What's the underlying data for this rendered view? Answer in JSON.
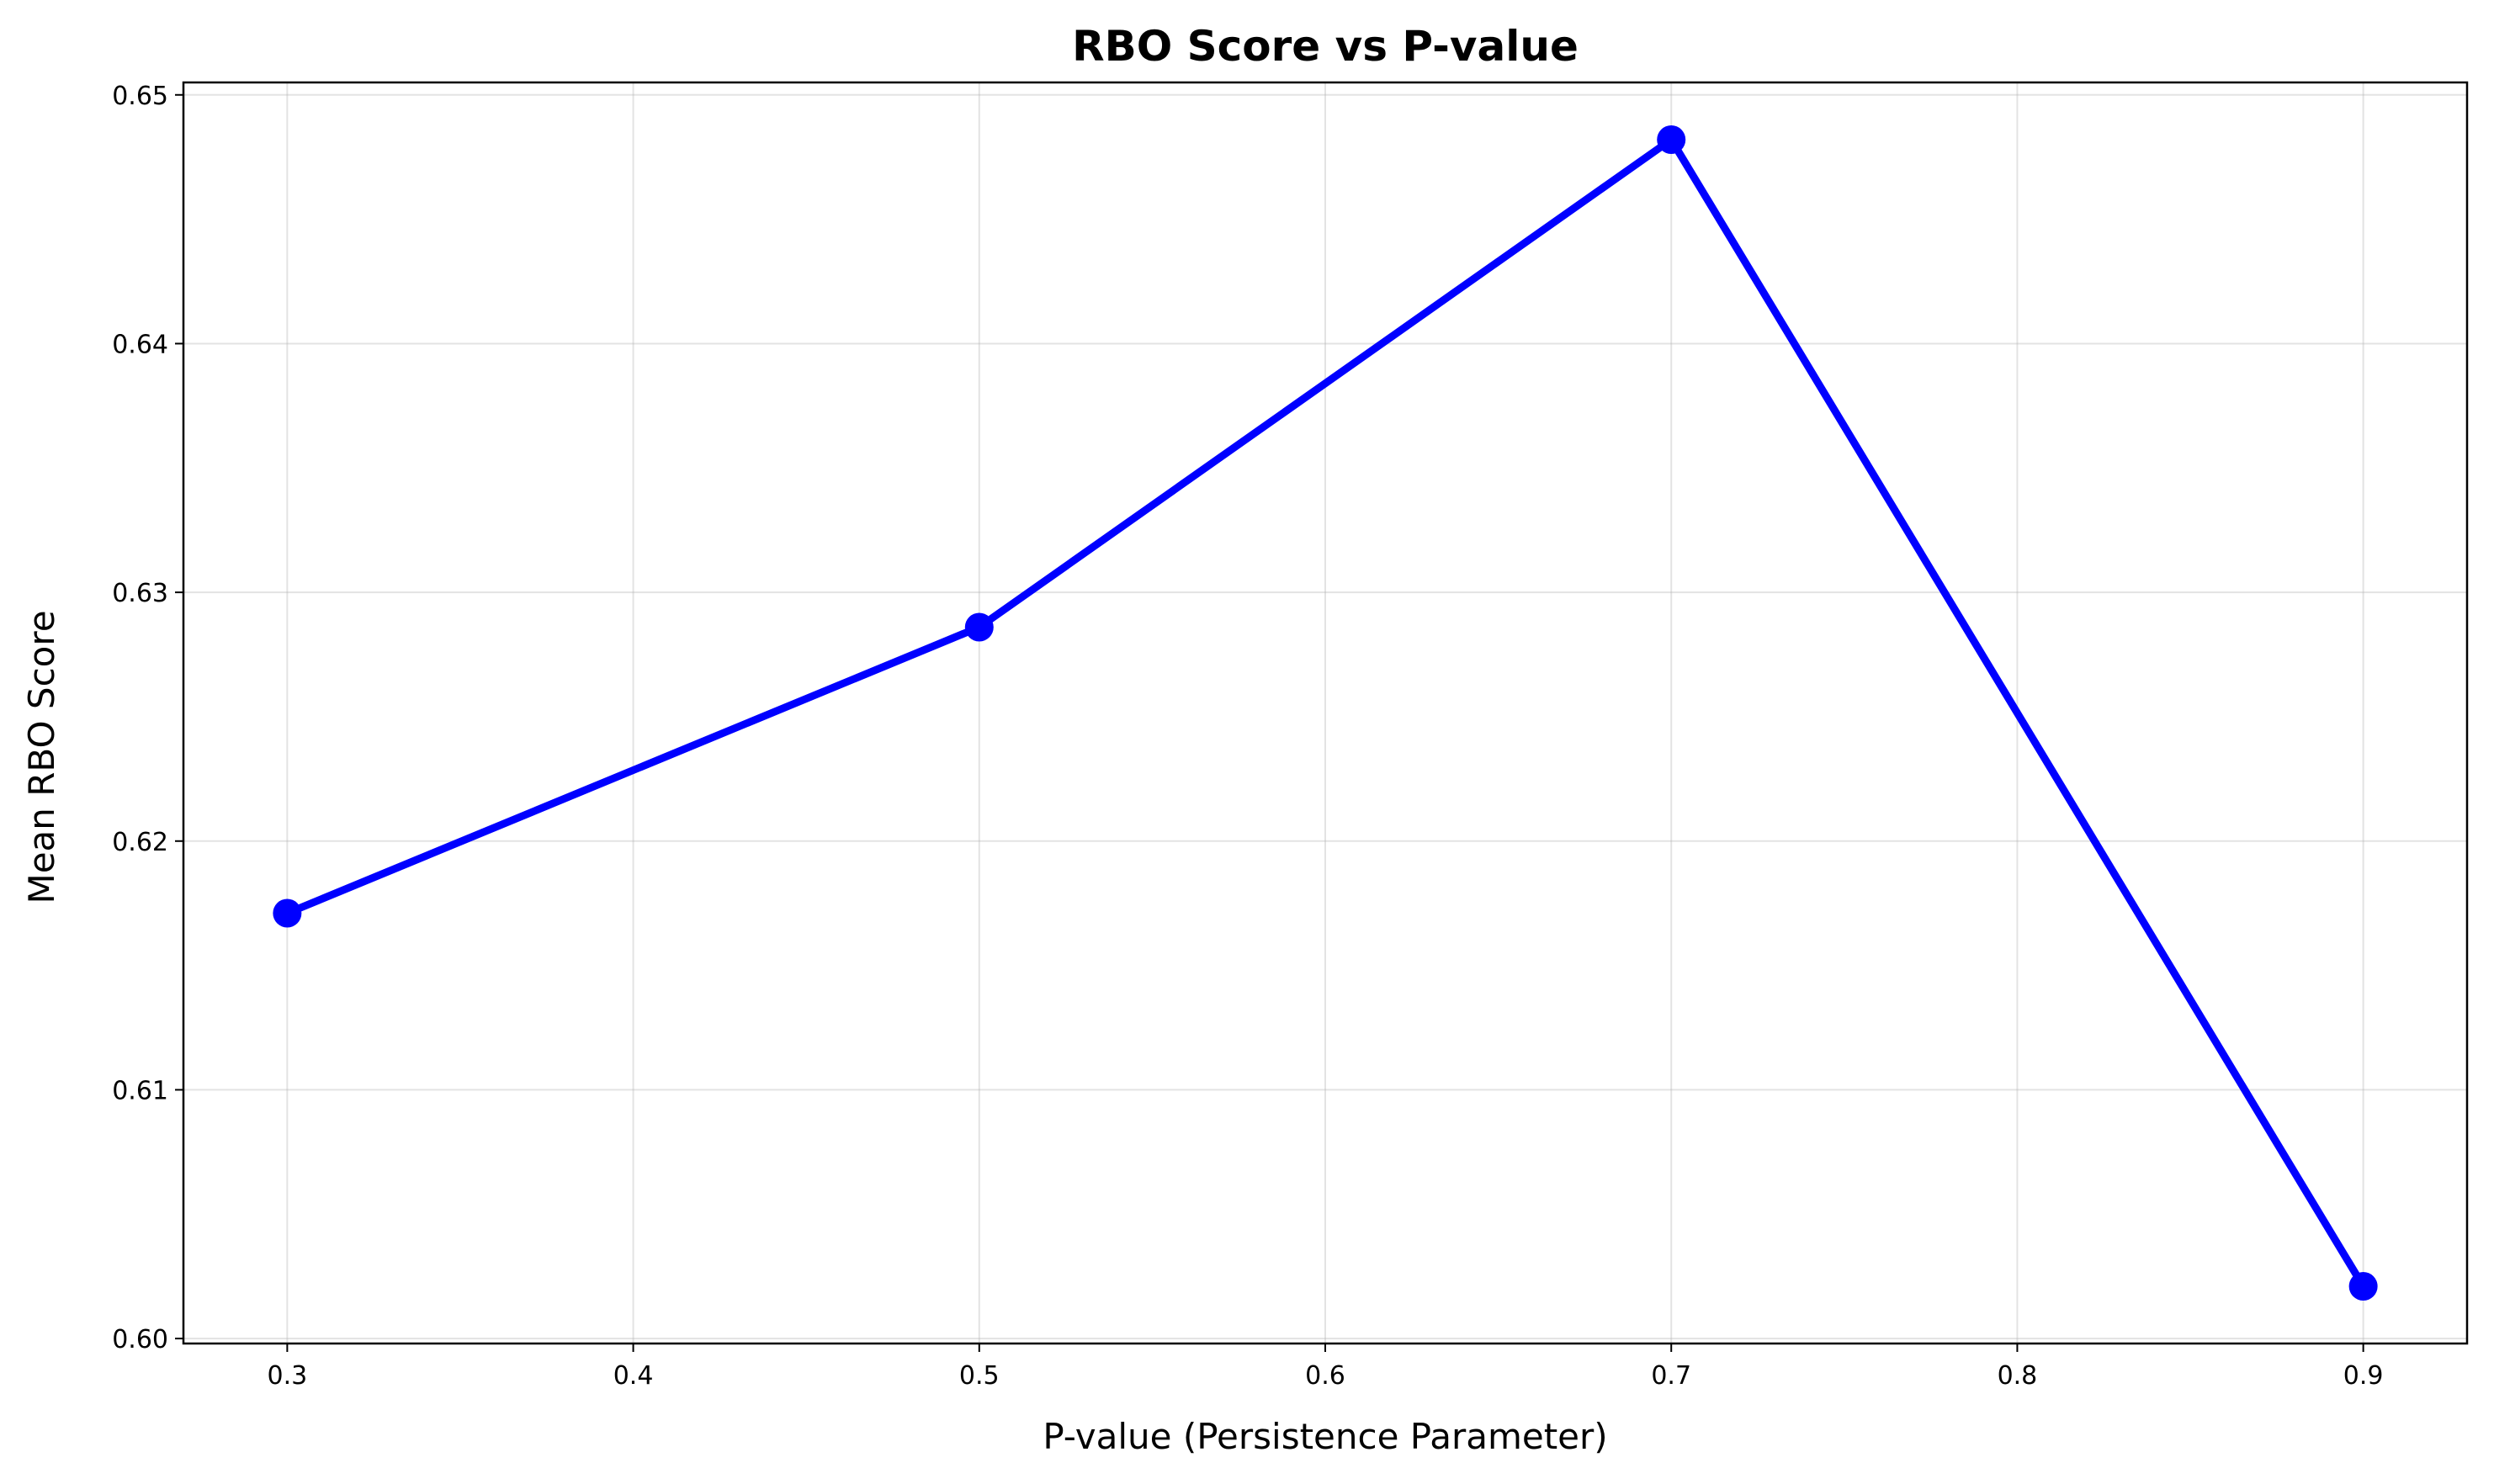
{
  "chart_data": {
    "type": "line",
    "title": "RBO Score vs P-value",
    "xlabel": "P-value (Persistence Parameter)",
    "ylabel": "Mean RBO Score",
    "xlim": [
      0.27,
      0.93
    ],
    "ylim": [
      0.5998,
      0.6505
    ],
    "xticks": [
      0.3,
      0.4,
      0.5,
      0.6,
      0.7,
      0.8,
      0.9
    ],
    "xtick_labels": [
      "0.3",
      "0.4",
      "0.5",
      "0.6",
      "0.7",
      "0.8",
      "0.9"
    ],
    "yticks": [
      0.6,
      0.61,
      0.62,
      0.63,
      0.64,
      0.65
    ],
    "ytick_labels": [
      "0.60",
      "0.61",
      "0.62",
      "0.63",
      "0.64",
      "0.65"
    ],
    "grid": true,
    "series": [
      {
        "x": [
          0.3,
          0.5,
          0.7,
          0.9
        ],
        "values": [
          0.6171,
          0.6286,
          0.6482,
          0.6021
        ],
        "color": "#0000ff",
        "marker": "circle"
      }
    ]
  }
}
